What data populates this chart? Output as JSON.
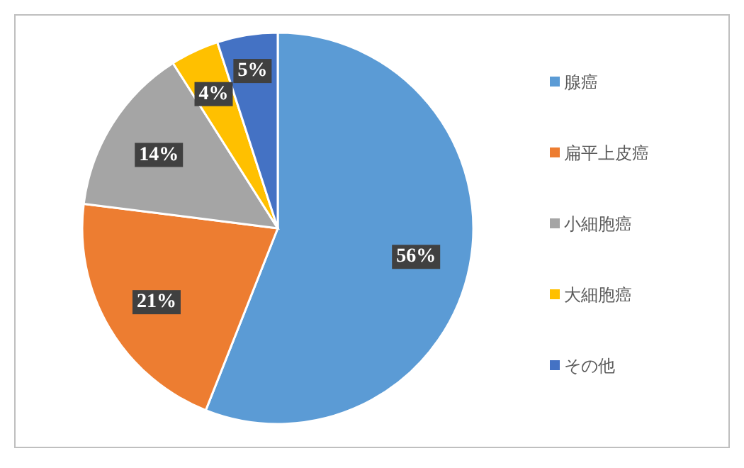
{
  "chart_data": {
    "type": "pie",
    "categories": [
      "腺癌",
      "扁平上皮癌",
      "小細胞癌",
      "大細胞癌",
      "その他"
    ],
    "values": [
      56,
      21,
      14,
      4,
      5
    ],
    "colors": [
      "#5b9bd5",
      "#ed7d31",
      "#a5a5a5",
      "#ffc000",
      "#4472c4"
    ],
    "value_labels": [
      "56%",
      "21%",
      "14%",
      "4%",
      "5%"
    ],
    "legend": "right"
  }
}
